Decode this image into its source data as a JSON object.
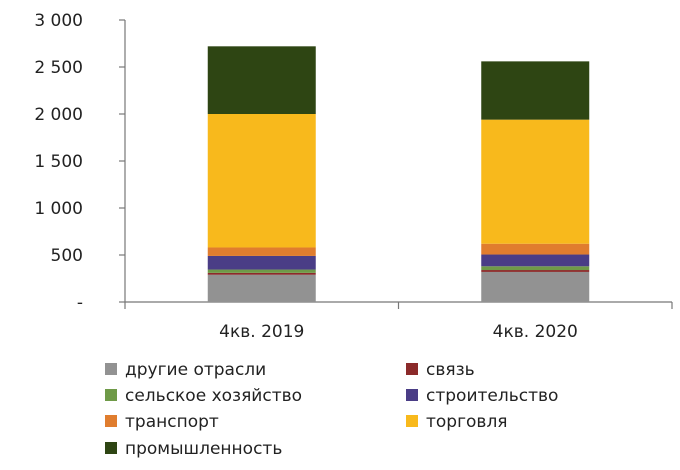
{
  "chart_data": {
    "type": "bar",
    "stacked": true,
    "categories": [
      "4кв. 2019",
      "4кв. 2020"
    ],
    "series": [
      {
        "name": "другие отрасли",
        "color": "#929292",
        "values": [
          290,
          320
        ]
      },
      {
        "name": "связь",
        "color": "#8b2a2a",
        "values": [
          20,
          20
        ]
      },
      {
        "name": "сельское хозяйство",
        "color": "#6f9a48",
        "values": [
          35,
          40
        ]
      },
      {
        "name": "строительство",
        "color": "#4a3d86",
        "values": [
          145,
          125
        ]
      },
      {
        "name": "транспорт",
        "color": "#e07d2e",
        "values": [
          90,
          115
        ]
      },
      {
        "name": "торговля",
        "color": "#f8b91c",
        "values": [
          1420,
          1320
        ]
      },
      {
        "name": "промышленность",
        "color": "#2e4513",
        "values": [
          720,
          620
        ]
      }
    ],
    "y_ticks": [
      "-",
      "500",
      "1 000",
      "1 500",
      "2 000",
      "2 500",
      "3 000"
    ],
    "ylim": [
      0,
      3000
    ],
    "grid": false,
    "legend": {
      "position": "bottom",
      "columns": 2,
      "order": [
        "другие отрасли",
        "связь",
        "сельское хозяйство",
        "строительство",
        "транспорт",
        "торговля",
        "промышленность"
      ]
    }
  }
}
